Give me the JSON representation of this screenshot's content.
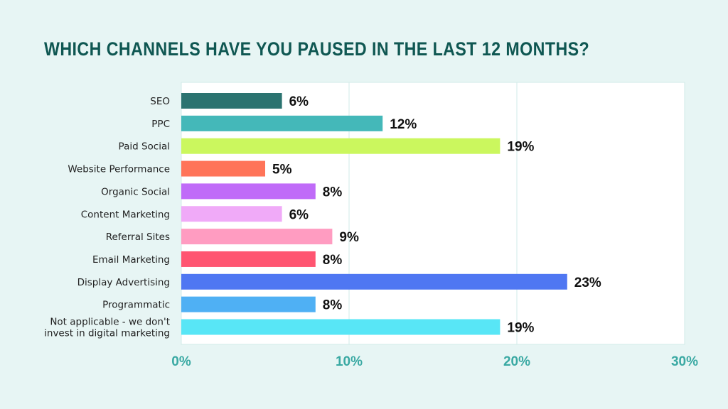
{
  "title": "WHICH CHANNELS HAVE YOU PAUSED IN THE LAST 12 MONTHS?",
  "chart_data": {
    "type": "bar",
    "orientation": "horizontal",
    "title": "WHICH CHANNELS HAVE YOU PAUSED IN THE LAST 12 MONTHS?",
    "categories": [
      "SEO",
      "PPC",
      "Paid Social",
      "Website Performance",
      "Organic Social",
      "Content Marketing",
      "Referral Sites",
      "Email Marketing",
      "Display Advertising",
      "Programmatic",
      "Not applicable - we don't invest in digital marketing"
    ],
    "values": [
      6,
      12,
      19,
      5,
      8,
      6,
      9,
      8,
      23,
      8,
      19
    ],
    "value_labels": [
      "6%",
      "12%",
      "19%",
      "5%",
      "8%",
      "6%",
      "9%",
      "8%",
      "23%",
      "8%",
      "19%"
    ],
    "colors": [
      "#2b7370",
      "#44b8b9",
      "#cbf75e",
      "#ff7459",
      "#c06bf8",
      "#f0aaf8",
      "#ff9cc1",
      "#ff5571",
      "#4f77f2",
      "#4fb0f4",
      "#58e6f6"
    ],
    "xlim": [
      0,
      30
    ],
    "xticks": [
      0,
      10,
      20,
      30
    ],
    "xtick_labels": [
      "0%",
      "10%",
      "20%",
      "30%"
    ],
    "xlabel": "",
    "ylabel": "",
    "grid": true,
    "legend": "none"
  }
}
